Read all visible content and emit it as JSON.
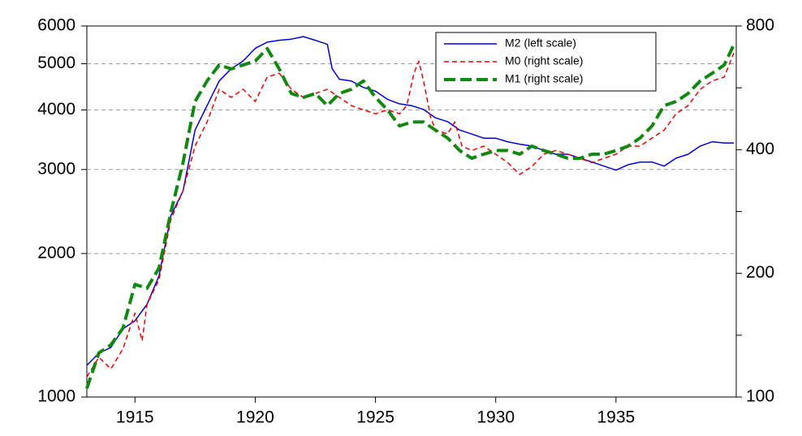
{
  "chart_data": {
    "type": "line",
    "log_scale": true,
    "grid": true,
    "legend": "upper right",
    "xlim": [
      1913,
      1940
    ],
    "xticks": [
      1915,
      1920,
      1925,
      1930,
      1935
    ],
    "ylim": [
      1000,
      6000
    ],
    "yticks": [
      1000,
      2000,
      3000,
      4000,
      5000,
      6000
    ],
    "y2lim": [
      100,
      800
    ],
    "y2ticks": [
      100,
      200,
      400,
      800
    ],
    "y2minor_ticks": [
      141.4,
      282.8,
      565.7
    ],
    "series": [
      {
        "name": "M2 (left scale)",
        "color": "#0000dd",
        "dash": "solid",
        "width": 1.5,
        "axis": "y",
        "x": [
          1913.0,
          1913.5,
          1914.0,
          1914.5,
          1915.0,
          1915.5,
          1916.0,
          1916.5,
          1917.0,
          1917.5,
          1918.0,
          1918.5,
          1919.0,
          1919.5,
          1920.0,
          1920.5,
          1921.0,
          1921.5,
          1922.0,
          1922.5,
          1923.0,
          1923.2,
          1923.5,
          1924.0,
          1924.5,
          1925.0,
          1925.5,
          1926.0,
          1926.5,
          1927.0,
          1927.5,
          1928.0,
          1928.5,
          1929.0,
          1929.5,
          1930.0,
          1930.5,
          1931.0,
          1931.5,
          1932.0,
          1932.5,
          1933.0,
          1933.5,
          1934.0,
          1934.5,
          1935.0,
          1935.5,
          1936.0,
          1936.5,
          1937.0,
          1937.5,
          1938.0,
          1938.5,
          1939.0,
          1939.5,
          1939.9
        ],
        "values": [
          1165,
          1236,
          1270,
          1390,
          1445,
          1565,
          1795,
          2405,
          2705,
          3630,
          4085,
          4600,
          4880,
          5070,
          5385,
          5550,
          5600,
          5630,
          5700,
          5600,
          5490,
          4880,
          4640,
          4600,
          4460,
          4380,
          4210,
          4120,
          4085,
          4010,
          3850,
          3780,
          3630,
          3560,
          3490,
          3490,
          3430,
          3390,
          3360,
          3290,
          3230,
          3230,
          3170,
          3110,
          3050,
          2990,
          3070,
          3110,
          3110,
          3050,
          3170,
          3230,
          3360,
          3430,
          3410,
          3410
        ]
      },
      {
        "name": "M0 (right scale)",
        "color": "#ee0000",
        "dash": "6,4",
        "width": 1.5,
        "axis": "y2",
        "x": [
          1913.0,
          1913.5,
          1914.0,
          1914.5,
          1915.0,
          1915.3,
          1915.5,
          1916.0,
          1916.5,
          1917.0,
          1917.5,
          1918.0,
          1918.5,
          1919.0,
          1919.5,
          1920.0,
          1920.5,
          1921.0,
          1921.5,
          1922.0,
          1922.5,
          1923.0,
          1923.5,
          1924.0,
          1924.5,
          1925.0,
          1925.5,
          1926.0,
          1926.3,
          1926.6,
          1926.8,
          1927.0,
          1927.3,
          1927.5,
          1928.0,
          1928.3,
          1928.6,
          1929.0,
          1929.5,
          1930.0,
          1930.5,
          1931.0,
          1931.5,
          1932.0,
          1932.5,
          1933.0,
          1933.5,
          1934.0,
          1934.5,
          1935.0,
          1935.5,
          1936.0,
          1936.5,
          1937.0,
          1937.5,
          1938.0,
          1938.5,
          1939.0,
          1939.5,
          1939.9
        ],
        "values": [
          112,
          125,
          117,
          131,
          160,
          137,
          168,
          193,
          271,
          318,
          408,
          467,
          561,
          536,
          561,
          524,
          601,
          614,
          561,
          536,
          548,
          561,
          536,
          512,
          500,
          489,
          500,
          489,
          512,
          614,
          657,
          588,
          478,
          446,
          437,
          467,
          408,
          398,
          408,
          390,
          372,
          348,
          364,
          390,
          398,
          390,
          381,
          372,
          381,
          390,
          408,
          408,
          427,
          446,
          489,
          512,
          561,
          588,
          601,
          688
        ]
      },
      {
        "name": "M1 (right scale)",
        "color": "#118811",
        "dash": "14,6",
        "width": 4,
        "axis": "y2",
        "x": [
          1913.0,
          1913.5,
          1914.0,
          1914.5,
          1915.0,
          1915.5,
          1916.0,
          1916.5,
          1917.0,
          1917.5,
          1918.0,
          1918.5,
          1919.0,
          1919.5,
          1920.0,
          1920.5,
          1921.0,
          1921.5,
          1922.0,
          1922.5,
          1923.0,
          1923.5,
          1924.0,
          1924.5,
          1925.0,
          1925.5,
          1926.0,
          1926.5,
          1927.0,
          1927.5,
          1928.0,
          1928.5,
          1929.0,
          1929.5,
          1930.0,
          1930.5,
          1931.0,
          1931.5,
          1932.0,
          1932.5,
          1933.0,
          1933.5,
          1934.0,
          1934.5,
          1935.0,
          1935.5,
          1936.0,
          1936.5,
          1937.0,
          1937.5,
          1938.0,
          1938.5,
          1939.0,
          1939.5,
          1939.9
        ],
        "values": [
          105,
          128,
          134,
          147,
          188,
          184,
          206,
          283,
          372,
          524,
          588,
          643,
          629,
          643,
          657,
          705,
          629,
          548,
          536,
          548,
          512,
          548,
          561,
          588,
          536,
          500,
          457,
          467,
          467,
          446,
          427,
          398,
          381,
          390,
          398,
          398,
          390,
          408,
          398,
          390,
          381,
          381,
          390,
          390,
          398,
          408,
          427,
          457,
          512,
          524,
          548,
          588,
          614,
          643,
          720
        ]
      }
    ]
  }
}
